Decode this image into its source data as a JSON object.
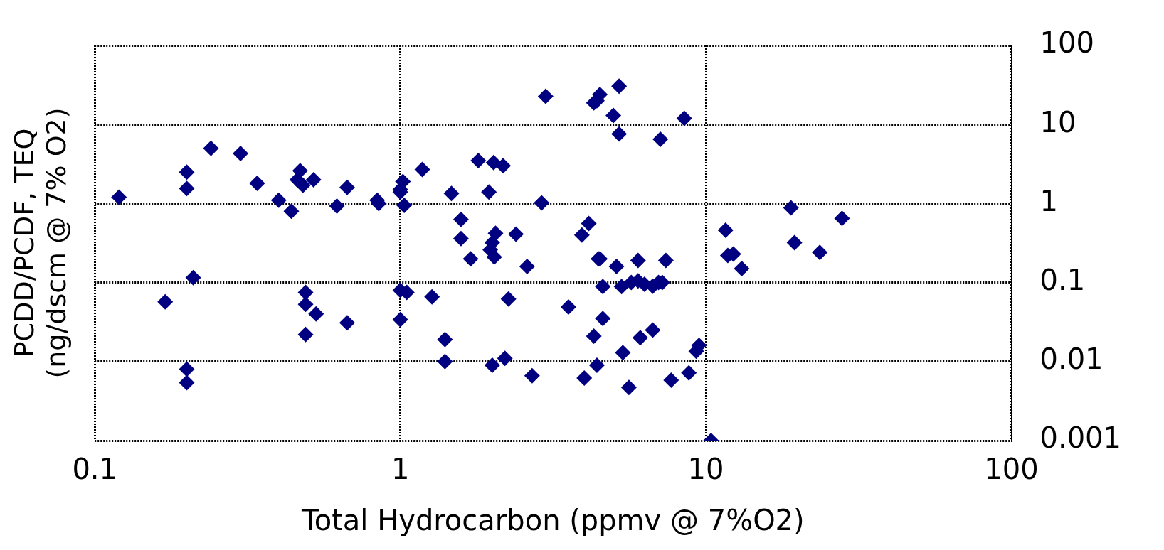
{
  "chart_data": {
    "type": "scatter",
    "xlabel": "Total Hydrocarbon (ppmv @ 7%O2)",
    "ylabel": "PCDD/PCDF, TEQ\n(ng/dscm @ 7% O2)",
    "log": "xy",
    "grid": true,
    "marker": "diamond",
    "legend": false,
    "xlim": [
      0.1,
      100
    ],
    "xticks": [
      0.1,
      1,
      10,
      100
    ],
    "ylim": [
      0.001,
      100
    ],
    "yticks": [
      0.001,
      0.01,
      0.1,
      1,
      10,
      100
    ],
    "series": [
      {
        "color": "#000080",
        "x": [
          0.12,
          0.17,
          0.2,
          0.2,
          0.21,
          0.2,
          0.2,
          0.24,
          0.3,
          0.34,
          0.4,
          0.44,
          0.47,
          0.46,
          0.48,
          0.52,
          0.49,
          0.49,
          0.53,
          0.49,
          0.62,
          0.67,
          0.67,
          0.84,
          0.85,
          1.0,
          1.0,
          1.02,
          1.03,
          1.0,
          1.05,
          1.0,
          1.18,
          1.27,
          1.47,
          1.4,
          1.4,
          1.58,
          1.58,
          1.7,
          1.8,
          2.02,
          2.17,
          1.95,
          2.05,
          2.0,
          1.97,
          2.03,
          2.39,
          2.0,
          2.2,
          2.26,
          2.6,
          2.7,
          2.99,
          2.9,
          3.55,
          3.93,
          4.14,
          4.0,
          4.3,
          4.4,
          4.5,
          4.5,
          4.98,
          5.2,
          5.2,
          4.3,
          4.4,
          4.6,
          4.45,
          4.6,
          5.1,
          5.35,
          5.6,
          5.3,
          5.7,
          6.0,
          6.3,
          6.7,
          7.0,
          6.0,
          6.1,
          6.7,
          7.2,
          7.4,
          7.1,
          7.7,
          8.5,
          8.8,
          9.3,
          9.5,
          10.4,
          11.6,
          11.8,
          12.3,
          13.1,
          19,
          19.5,
          23.6,
          27.9
        ],
        "values": [
          1.2,
          0.057,
          2.5,
          1.55,
          0.115,
          0.008,
          0.0054,
          5.0,
          4.3,
          1.8,
          1.1,
          0.8,
          2.6,
          2.0,
          1.7,
          2.0,
          0.075,
          0.053,
          0.04,
          0.022,
          0.93,
          1.6,
          0.031,
          1.1,
          1.0,
          1.5,
          1.4,
          1.9,
          0.95,
          0.08,
          0.075,
          0.034,
          2.7,
          0.066,
          1.34,
          0.019,
          0.01,
          0.63,
          0.36,
          0.2,
          3.5,
          3.3,
          3.0,
          1.4,
          0.42,
          0.32,
          0.26,
          0.21,
          0.41,
          0.009,
          0.011,
          0.062,
          0.16,
          0.0066,
          22.7,
          1.02,
          0.049,
          0.4,
          0.56,
          0.0062,
          18.8,
          20,
          24,
          0.2,
          13,
          7.6,
          30.6,
          0.021,
          0.009,
          0.035,
          0.2,
          0.089,
          0.16,
          0.013,
          0.0047,
          0.089,
          0.1,
          0.105,
          0.095,
          0.09,
          0.1,
          0.19,
          0.02,
          0.025,
          0.1,
          0.19,
          6.5,
          0.0058,
          12,
          0.0072,
          0.0135,
          0.016,
          0.001,
          0.46,
          0.22,
          0.23,
          0.15,
          0.88,
          0.32,
          0.24,
          0.65
        ]
      }
    ]
  }
}
